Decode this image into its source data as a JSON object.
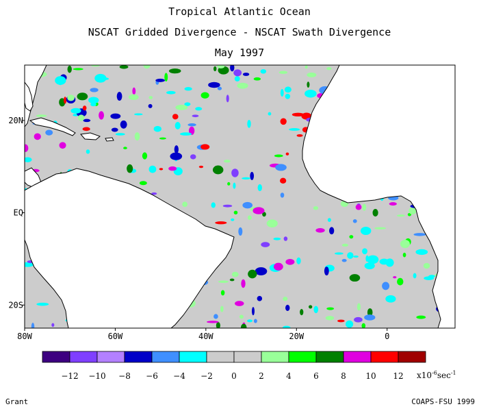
{
  "titles": {
    "line1": "Tropical Atlantic Ocean",
    "line2": "NSCAT Gridded Divergence - NSCAT Swath Divergence",
    "line3": "May 1997"
  },
  "map": {
    "lon_ticks": [
      "80W",
      "60W",
      "40W",
      "20W",
      "0"
    ],
    "lat_ticks": [
      "20N",
      "EQ",
      "20S"
    ],
    "lon_range": [
      -80,
      15
    ],
    "lat_range": [
      -25,
      32
    ],
    "ocean_color": "#c8c8c8",
    "land_color": "#ffffff"
  },
  "colorbar": {
    "colors": [
      "#3d0080",
      "#7f3fff",
      "#b380ff",
      "#0000c8",
      "#3f8fff",
      "#00ffff",
      "#cccccc",
      "#cccccc",
      "#99ff99",
      "#00ff00",
      "#008000",
      "#e000e0",
      "#ff0000",
      "#a00000"
    ],
    "labels": [
      "-12",
      "-10",
      "-8",
      "-6",
      "-4",
      "-2",
      "0",
      "2",
      "4",
      "6",
      "8",
      "10",
      "12"
    ],
    "unit_base": "x10",
    "unit_exp": "-6",
    "unit_tail": "sec",
    "unit_tail_exp": "-1"
  },
  "credits": {
    "left": "Grant",
    "right": "COAPS-FSU 1999"
  }
}
